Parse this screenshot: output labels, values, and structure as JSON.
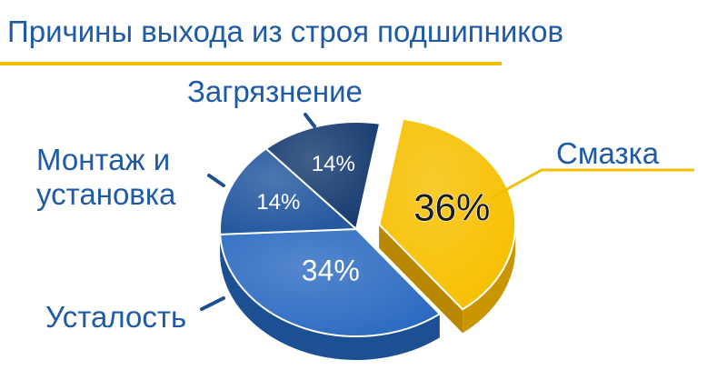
{
  "chart_data": {
    "type": "pie",
    "title": "Причины выхода из строя подшипников",
    "slices": [
      {
        "label": "Смазка",
        "value": 36,
        "value_label": "36%",
        "color": "#f7c000",
        "side": "#c99500",
        "exploded": true
      },
      {
        "label": "Усталость",
        "value": 34,
        "value_label": "34%",
        "color": "#2e6cc2",
        "side": "#1d4f93"
      },
      {
        "label": "Монтаж и установка",
        "value": 14,
        "value_label": "14%",
        "color": "#24589f",
        "side": "#173c70"
      },
      {
        "label": "Загрязнение",
        "value": 14,
        "value_label": "14%",
        "color": "#173c70",
        "side": "#0e2749"
      }
    ],
    "legend": "none",
    "colors": {
      "title": "#1f5aa6",
      "rule": "#f2c000"
    }
  },
  "labels": {
    "lubrication": "Смазка",
    "fatigue": "Усталость",
    "mounting_line1": "Монтаж и",
    "mounting_line2": "установка",
    "contamination": "Загрязнение"
  }
}
